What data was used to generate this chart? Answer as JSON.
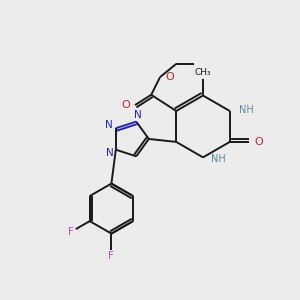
{
  "background_color": "#ececec",
  "bond_color": "#1a1a1a",
  "N_color": "#2222cc",
  "O_color": "#cc2222",
  "F_color": "#cc44cc",
  "NH_color": "#5090a0",
  "figsize": [
    3.0,
    3.0
  ],
  "dpi": 100,
  "xlim": [
    0,
    10
  ],
  "ylim": [
    0,
    10
  ]
}
